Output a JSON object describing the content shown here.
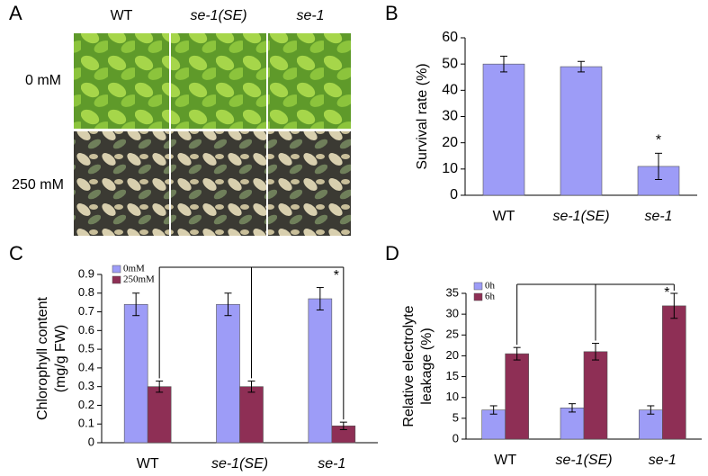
{
  "panel_a": {
    "panel": "A",
    "columns": [
      "WT",
      "se-1(SE)",
      "se-1"
    ],
    "rows": [
      "0 mM",
      "250 mM"
    ]
  },
  "chart_data": [
    {
      "type": "bar",
      "panel": "B",
      "ylabel": [
        "Survival rate (%)"
      ],
      "categories": [
        "WT",
        "se-1(SE)",
        "se-1"
      ],
      "values": [
        50,
        49,
        11
      ],
      "errors": [
        3,
        2,
        5
      ],
      "color": "#9d9cf7",
      "ylim": [
        0,
        60
      ],
      "yticks": [
        0,
        10,
        20,
        30,
        40,
        50,
        60
      ],
      "annotation": "*"
    },
    {
      "type": "bar",
      "panel": "C",
      "ylabel": [
        "Chlorophyll content",
        "(mg/g FW)"
      ],
      "categories": [
        "WT",
        "se-1(SE)",
        "se-1"
      ],
      "series": [
        {
          "name": "0mM",
          "color": "#9d9cf7",
          "values": [
            0.74,
            0.74,
            0.77
          ],
          "errors": [
            0.06,
            0.06,
            0.06
          ]
        },
        {
          "name": "250mM",
          "color": "#8e2f55",
          "values": [
            0.3,
            0.3,
            0.09
          ],
          "errors": [
            0.03,
            0.03,
            0.02
          ]
        }
      ],
      "ylim": [
        0,
        0.9
      ],
      "yticks": [
        0,
        0.1,
        0.2,
        0.3,
        0.4,
        0.5,
        0.6,
        0.7,
        0.8,
        0.9
      ],
      "annotation": "*"
    },
    {
      "type": "bar",
      "panel": "D",
      "ylabel": [
        "Relative electrolyte",
        "leakage (%)"
      ],
      "categories": [
        "WT",
        "se-1(SE)",
        "se-1"
      ],
      "series": [
        {
          "name": "0h",
          "color": "#9d9cf7",
          "values": [
            7,
            7.5,
            7
          ],
          "errors": [
            1,
            1,
            1
          ]
        },
        {
          "name": "6h",
          "color": "#8e2f55",
          "values": [
            20.5,
            21,
            32
          ],
          "errors": [
            1.5,
            2,
            3
          ]
        }
      ],
      "ylim": [
        0,
        35
      ],
      "yticks": [
        0,
        5,
        10,
        15,
        20,
        25,
        30,
        35
      ],
      "annotation": "*"
    }
  ]
}
